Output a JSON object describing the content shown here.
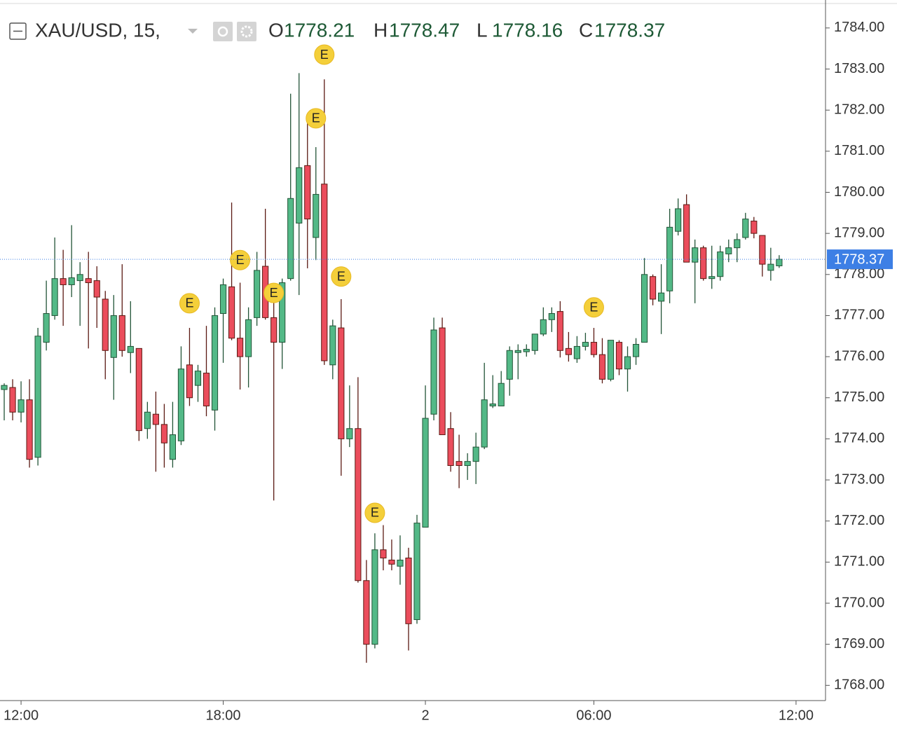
{
  "chart_data": {
    "type": "candlestick",
    "symbol": "XAU/USD, 15,",
    "ohlc_labels": [
      "O",
      "H",
      "L",
      "C"
    ],
    "open": [
      1775.2,
      1775.25,
      1774.65,
      1774.95,
      1773.55,
      1776.35,
      1777.0,
      1777.9,
      1777.75,
      1777.85,
      1777.9,
      1777.85,
      1777.4,
      1775.98,
      1777.0,
      1776.1,
      1776.2,
      1774.25,
      1774.6,
      1774.35,
      1773.5,
      1773.95,
      1775.8,
      1775.3,
      1775.6,
      1774.7,
      1777.05,
      1777.7,
      1776.45,
      1776.0,
      1776.95,
      1778.2,
      1776.95,
      1776.35,
      1777.9,
      1779.25,
      1780.65,
      1778.9,
      1780.2,
      1775.8,
      1776.7,
      1774.0,
      1774.25,
      1770.55,
      1769.0,
      1771.3,
      1771.05,
      1770.9,
      1771.1,
      1769.6,
      1771.85,
      1774.6,
      1776.7,
      1774.25,
      1773.45,
      1773.35,
      1773.45,
      1773.8,
      1774.8,
      1774.8,
      1775.45,
      1776.1,
      1776.12,
      1776.15,
      1776.55,
      1776.9,
      1777.1,
      1776.2,
      1775.95,
      1776.25,
      1776.35,
      1776.05,
      1775.45,
      1776.35,
      1775.7,
      1776.0,
      1776.35,
      1777.95,
      1777.35,
      1777.6,
      1779.05,
      1779.7,
      1778.3,
      1778.65,
      1777.9,
      1777.95,
      1778.5,
      1778.65,
      1778.9,
      1779.3,
      1778.95,
      1778.1,
      1778.21
    ],
    "high": [
      1775.35,
      1775.45,
      1775.4,
      1775.45,
      1776.7,
      1777.85,
      1778.9,
      1778.6,
      1779.2,
      1778.3,
      1778.55,
      1778.2,
      1777.6,
      1777.5,
      1778.25,
      1777.35,
      1776.2,
      1774.9,
      1775.15,
      1774.85,
      1774.9,
      1776.25,
      1776.7,
      1775.8,
      1776.75,
      1777.2,
      1777.9,
      1779.75,
      1777.8,
      1777.2,
      1778.55,
      1779.6,
      1777.35,
      1777.9,
      1782.4,
      1782.9,
      1781.8,
      1781.1,
      1782.75,
      1776.9,
      1777.4,
      1775.3,
      1775.5,
      1771.05,
      1771.7,
      1771.9,
      1771.55,
      1771.65,
      1771.35,
      1772.15,
      1775.3,
      1776.95,
      1776.95,
      1774.65,
      1774.1,
      1773.65,
      1774.15,
      1775.85,
      1775.55,
      1775.65,
      1776.25,
      1776.3,
      1776.3,
      1776.55,
      1777.2,
      1777.2,
      1777.35,
      1776.6,
      1776.5,
      1776.58,
      1776.7,
      1776.45,
      1776.4,
      1776.4,
      1776.25,
      1776.45,
      1778.4,
      1778.0,
      1778.25,
      1779.6,
      1779.85,
      1779.95,
      1778.85,
      1778.7,
      1778.7,
      1778.7,
      1778.85,
      1779.0,
      1779.5,
      1779.4,
      1778.95,
      1778.65,
      1778.47
    ],
    "low": [
      1774.45,
      1774.45,
      1774.4,
      1773.3,
      1773.35,
      1776.15,
      1776.9,
      1776.75,
      1777.45,
      1776.75,
      1776.2,
      1776.7,
      1775.45,
      1774.95,
      1776.0,
      1775.6,
      1773.95,
      1774.0,
      1773.2,
      1773.3,
      1773.3,
      1773.85,
      1774.8,
      1774.9,
      1774.55,
      1774.2,
      1775.85,
      1776.4,
      1775.2,
      1775.25,
      1776.75,
      1776.9,
      1772.5,
      1775.7,
      1777.85,
      1777.5,
      1778.15,
      1778.35,
      1775.8,
      1775.45,
      1773.1,
      1773.8,
      1770.5,
      1768.55,
      1768.9,
      1770.8,
      1770.8,
      1770.45,
      1768.85,
      1769.5,
      1771.85,
      1774.45,
      1774.1,
      1773.2,
      1772.8,
      1773.0,
      1772.9,
      1773.75,
      1774.75,
      1774.8,
      1775.05,
      1775.45,
      1776.0,
      1776.05,
      1776.5,
      1776.6,
      1775.98,
      1775.88,
      1775.85,
      1776.15,
      1775.98,
      1775.35,
      1775.4,
      1775.55,
      1775.15,
      1775.8,
      1776.35,
      1777.25,
      1776.55,
      1777.3,
      1778.95,
      1778.3,
      1777.3,
      1777.85,
      1777.65,
      1777.85,
      1778.3,
      1778.3,
      1778.85,
      1778.88,
      1777.95,
      1777.85,
      1778.16
    ],
    "close": [
      1775.3,
      1774.65,
      1774.95,
      1773.5,
      1776.5,
      1777.05,
      1777.9,
      1777.75,
      1777.92,
      1778.0,
      1777.8,
      1777.45,
      1776.15,
      1777.0,
      1776.15,
      1776.25,
      1774.2,
      1774.65,
      1774.35,
      1773.9,
      1774.1,
      1775.7,
      1775.0,
      1775.65,
      1774.8,
      1777.0,
      1777.75,
      1776.45,
      1776.0,
      1776.9,
      1778.1,
      1776.95,
      1776.35,
      1777.8,
      1779.85,
      1780.6,
      1779.35,
      1779.95,
      1775.9,
      1776.75,
      1774.0,
      1774.25,
      1770.55,
      1769.0,
      1771.3,
      1771.1,
      1770.95,
      1771.05,
      1769.5,
      1771.95,
      1774.5,
      1776.65,
      1774.1,
      1773.35,
      1773.35,
      1773.45,
      1773.8,
      1774.95,
      1774.85,
      1775.35,
      1776.15,
      1776.15,
      1776.18,
      1776.55,
      1776.9,
      1777.05,
      1776.15,
      1776.05,
      1776.25,
      1776.35,
      1776.05,
      1775.45,
      1776.4,
      1775.7,
      1776.0,
      1776.3,
      1778.0,
      1777.4,
      1777.55,
      1779.15,
      1779.6,
      1778.3,
      1778.65,
      1777.9,
      1777.95,
      1778.55,
      1778.65,
      1778.85,
      1779.35,
      1779.0,
      1778.25,
      1778.25,
      1778.37
    ],
    "xlim": [
      -0.5,
      97.5
    ],
    "xticks": [
      {
        "value": 2,
        "label": "12:00"
      },
      {
        "value": 26,
        "label": "18:00"
      },
      {
        "value": 50,
        "label": "2"
      },
      {
        "value": 70,
        "label": "06:00"
      },
      {
        "value": 94,
        "label": "12:00"
      }
    ],
    "ylim": [
      1767.63,
      1784.68
    ],
    "yticks": [
      {
        "value": 1768,
        "label": "1768.00"
      },
      {
        "value": 1769,
        "label": "1769.00"
      },
      {
        "value": 1770,
        "label": "1770.00"
      },
      {
        "value": 1771,
        "label": "1771.00"
      },
      {
        "value": 1772,
        "label": "1772.00"
      },
      {
        "value": 1773,
        "label": "1773.00"
      },
      {
        "value": 1774,
        "label": "1774.00"
      },
      {
        "value": 1775,
        "label": "1775.00"
      },
      {
        "value": 1776,
        "label": "1776.00"
      },
      {
        "value": 1777,
        "label": "1777.00"
      },
      {
        "value": 1778,
        "label": "1778.00"
      },
      {
        "value": 1779,
        "label": "1779.00"
      },
      {
        "value": 1780,
        "label": "1780.00"
      },
      {
        "value": 1781,
        "label": "1781.00"
      },
      {
        "value": 1782,
        "label": "1782.00"
      },
      {
        "value": 1783,
        "label": "1783.00"
      },
      {
        "value": 1784,
        "label": "1784.00"
      }
    ],
    "grid": false,
    "up_color": "#53b987",
    "down_color": "#eb4d5c",
    "up_border": "#225437",
    "down_border": "#5b1a13",
    "last_price_color": "#3d7fe5",
    "events": [
      {
        "label": "E",
        "x": 22,
        "y": 1777.3
      },
      {
        "label": "E",
        "x": 28,
        "y": 1778.35
      },
      {
        "label": "E",
        "x": 32,
        "y": 1777.55
      },
      {
        "label": "E",
        "x": 37,
        "y": 1781.8
      },
      {
        "label": "E",
        "x": 38,
        "y": 1783.35
      },
      {
        "label": "E",
        "x": 40,
        "y": 1777.95
      },
      {
        "label": "E",
        "x": 44,
        "y": 1772.2
      },
      {
        "label": "E",
        "x": 70,
        "y": 1777.2
      }
    ],
    "event_color": "#f4cf3a"
  }
}
